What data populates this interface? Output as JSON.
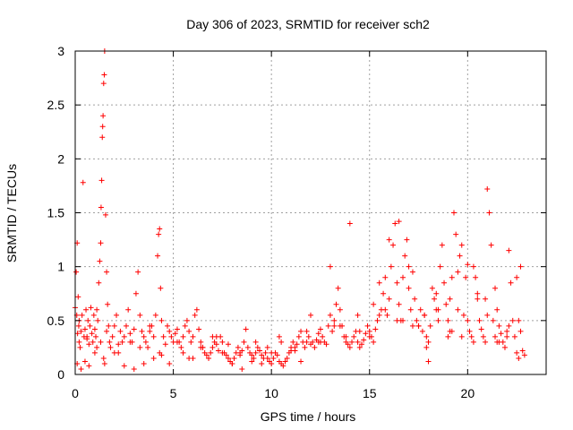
{
  "chart_data": {
    "type": "scatter",
    "title": "Day 306 of 2023, SRMTID for receiver sch2",
    "xlabel": "GPS time / hours",
    "ylabel": "SRMTID / TECUs",
    "xlim": [
      0,
      24
    ],
    "ylim": [
      0,
      3
    ],
    "xticks": [
      0,
      5,
      10,
      15,
      20
    ],
    "xtick_labels": [
      "0",
      "5",
      "10",
      "15",
      "20"
    ],
    "yticks": [
      0,
      0.5,
      1,
      1.5,
      2,
      2.5,
      3
    ],
    "ytick_labels": [
      "0",
      "0.5",
      "1",
      "1.5",
      "2",
      "2.5",
      "3"
    ],
    "grid": true,
    "marker": "+",
    "color": "#ff0000",
    "series": [
      {
        "name": "SRMTID",
        "x": [
          0.0,
          0.05,
          0.08,
          0.1,
          0.12,
          0.15,
          0.18,
          0.2,
          0.25,
          0.3,
          0.35,
          0.4,
          0.45,
          0.5,
          0.55,
          0.6,
          0.65,
          0.7,
          0.75,
          0.8,
          0.85,
          0.9,
          0.95,
          1.0,
          1.05,
          1.1,
          1.15,
          1.2,
          1.25,
          1.3,
          1.32,
          1.35,
          1.38,
          1.4,
          1.42,
          1.45,
          1.48,
          1.5,
          1.55,
          1.6,
          1.65,
          1.7,
          1.75,
          1.8,
          1.9,
          2.0,
          2.1,
          2.2,
          2.3,
          2.4,
          2.5,
          2.6,
          2.7,
          2.8,
          2.9,
          3.0,
          3.1,
          3.2,
          3.3,
          3.4,
          3.5,
          3.6,
          3.7,
          3.8,
          3.9,
          4.0,
          4.1,
          4.2,
          4.25,
          4.3,
          4.35,
          4.4,
          4.5,
          4.6,
          4.7,
          4.8,
          4.9,
          5.0,
          5.1,
          5.2,
          5.3,
          5.4,
          5.5,
          5.6,
          5.7,
          5.8,
          5.9,
          6.0,
          6.1,
          6.2,
          6.3,
          6.4,
          6.5,
          6.6,
          6.7,
          6.8,
          6.9,
          7.0,
          7.1,
          7.2,
          7.3,
          7.4,
          7.5,
          7.6,
          7.7,
          7.8,
          7.9,
          8.0,
          8.1,
          8.2,
          8.3,
          8.4,
          8.5,
          8.6,
          8.7,
          8.8,
          8.9,
          9.0,
          9.1,
          9.2,
          9.3,
          9.4,
          9.5,
          9.6,
          9.7,
          9.8,
          9.9,
          10.0,
          10.1,
          10.2,
          10.3,
          10.4,
          10.5,
          10.6,
          10.7,
          10.8,
          10.9,
          11.0,
          11.1,
          11.2,
          11.3,
          11.4,
          11.5,
          11.6,
          11.7,
          11.8,
          11.9,
          12.0,
          12.1,
          12.2,
          12.3,
          12.4,
          12.5,
          12.6,
          12.7,
          12.8,
          12.9,
          13.0,
          13.1,
          13.2,
          13.3,
          13.4,
          13.5,
          13.6,
          13.7,
          13.8,
          13.9,
          14.0,
          14.1,
          14.2,
          14.3,
          14.4,
          14.5,
          14.6,
          14.7,
          14.8,
          14.9,
          15.0,
          15.1,
          15.2,
          15.3,
          15.4,
          15.5,
          15.6,
          15.7,
          15.8,
          15.9,
          16.0,
          16.1,
          16.2,
          16.3,
          16.4,
          16.5,
          16.6,
          16.7,
          16.8,
          16.9,
          17.0,
          17.1,
          17.2,
          17.3,
          17.4,
          17.5,
          17.6,
          17.7,
          17.8,
          17.9,
          18.0,
          18.1,
          18.2,
          18.3,
          18.4,
          18.5,
          18.6,
          18.7,
          18.8,
          18.9,
          19.0,
          19.1,
          19.2,
          19.3,
          19.4,
          19.5,
          19.6,
          19.7,
          19.8,
          19.9,
          20.0,
          20.1,
          20.2,
          20.3,
          20.4,
          20.5,
          20.6,
          20.7,
          20.8,
          20.9,
          21.0,
          21.1,
          21.2,
          21.3,
          21.4,
          21.5,
          21.6,
          21.7,
          21.8,
          21.9,
          22.0,
          22.1,
          22.2,
          22.3,
          22.4,
          22.5,
          22.6,
          22.7,
          22.8,
          22.9,
          0.1,
          0.3,
          0.5,
          0.7,
          1.0,
          1.3,
          1.45,
          1.5,
          2.0,
          2.5,
          3.0,
          3.5,
          4.0,
          4.3,
          4.8,
          5.5,
          6.0,
          6.5,
          7.0,
          7.5,
          8.0,
          8.5,
          9.0,
          9.5,
          10.0,
          10.5,
          11.0,
          11.5,
          12.0,
          12.5,
          13.0,
          13.5,
          14.0,
          14.5,
          15.0,
          15.5,
          16.0,
          16.5,
          16.7,
          17.0,
          17.5,
          17.9,
          18.0,
          18.5,
          19.0,
          19.2,
          19.5,
          20.0,
          20.5,
          21.0,
          21.5,
          21.6,
          22.0,
          22.5,
          22.7,
          0.2,
          0.6,
          1.1,
          1.6,
          2.2,
          2.8,
          3.3,
          3.8,
          4.4,
          5.2,
          5.8,
          6.4,
          7.2,
          7.8,
          8.4,
          9.2,
          9.8,
          10.4,
          11.2,
          11.8,
          12.4,
          13.2,
          13.8,
          14.4,
          15.2,
          15.8,
          16.4,
          17.2,
          17.8,
          18.4,
          19.1,
          19.7,
          20.3,
          20.9,
          21.4,
          22.1,
          22.6
        ],
        "y": [
          0.62,
          0.95,
          0.55,
          1.22,
          0.38,
          0.72,
          0.45,
          0.3,
          0.25,
          0.4,
          0.55,
          1.78,
          0.35,
          0.42,
          0.6,
          0.33,
          0.5,
          0.28,
          0.45,
          0.62,
          0.38,
          0.3,
          0.55,
          0.42,
          0.35,
          0.6,
          0.5,
          0.85,
          1.05,
          1.22,
          1.55,
          1.8,
          2.2,
          2.3,
          2.4,
          2.7,
          2.78,
          3.0,
          1.48,
          0.95,
          0.65,
          0.45,
          0.3,
          0.25,
          0.35,
          0.45,
          0.55,
          0.28,
          0.4,
          0.3,
          0.35,
          0.45,
          0.6,
          0.38,
          0.3,
          0.42,
          0.75,
          0.95,
          0.55,
          0.4,
          0.35,
          0.3,
          0.25,
          0.4,
          0.45,
          0.35,
          0.55,
          1.1,
          1.3,
          1.35,
          0.8,
          0.5,
          0.35,
          0.28,
          0.45,
          0.4,
          0.35,
          0.3,
          0.38,
          0.42,
          0.3,
          0.25,
          0.35,
          0.45,
          0.5,
          0.4,
          0.3,
          0.35,
          0.55,
          0.6,
          0.42,
          0.3,
          0.25,
          0.2,
          0.18,
          0.15,
          0.2,
          0.25,
          0.3,
          0.28,
          0.22,
          0.35,
          0.3,
          0.2,
          0.18,
          0.15,
          0.12,
          0.1,
          0.15,
          0.2,
          0.25,
          0.18,
          0.22,
          0.3,
          0.42,
          0.25,
          0.2,
          0.18,
          0.15,
          0.2,
          0.25,
          0.22,
          0.18,
          0.15,
          0.2,
          0.25,
          0.12,
          0.1,
          0.15,
          0.2,
          0.18,
          0.12,
          0.1,
          0.08,
          0.12,
          0.15,
          0.2,
          0.25,
          0.3,
          0.22,
          0.28,
          0.35,
          0.4,
          0.3,
          0.25,
          0.3,
          0.35,
          0.28,
          0.3,
          0.25,
          0.32,
          0.38,
          0.42,
          0.35,
          0.3,
          0.28,
          0.45,
          0.55,
          0.4,
          0.5,
          0.65,
          0.8,
          0.6,
          0.45,
          0.35,
          0.3,
          0.28,
          0.25,
          0.3,
          0.35,
          0.4,
          0.3,
          0.25,
          0.28,
          0.32,
          0.38,
          0.45,
          0.4,
          0.35,
          0.3,
          0.42,
          0.5,
          0.55,
          0.6,
          0.75,
          0.9,
          0.55,
          0.7,
          1.0,
          1.2,
          1.4,
          0.85,
          0.65,
          0.5,
          0.9,
          1.1,
          1.25,
          0.8,
          0.6,
          0.95,
          0.7,
          0.5,
          0.45,
          0.6,
          0.4,
          0.55,
          0.35,
          0.3,
          0.45,
          0.8,
          0.7,
          0.6,
          0.5,
          1.0,
          1.2,
          0.85,
          0.65,
          0.5,
          0.7,
          0.9,
          1.5,
          1.3,
          0.6,
          1.1,
          1.2,
          0.55,
          0.9,
          0.5,
          0.4,
          0.35,
          1.0,
          0.9,
          0.7,
          0.5,
          0.42,
          0.35,
          0.3,
          1.72,
          1.5,
          1.2,
          0.5,
          0.35,
          0.3,
          0.45,
          0.38,
          0.3,
          0.25,
          0.4,
          1.15,
          0.85,
          0.5,
          0.35,
          0.2,
          0.15,
          1.0,
          0.22,
          0.18,
          0.1,
          0.05,
          0.12,
          0.08,
          0.2,
          0.3,
          0.15,
          0.1,
          0.2,
          0.08,
          0.05,
          0.1,
          0.15,
          0.2,
          0.1,
          0.2,
          0.15,
          0.25,
          0.35,
          0.2,
          0.1,
          0.05,
          0.12,
          0.1,
          0.2,
          0.3,
          0.22,
          0.12,
          0.55,
          0.3,
          1.0,
          0.45,
          1.4,
          0.4,
          0.35,
          0.85,
          1.25,
          1.42,
          0.5,
          1.0,
          0.45,
          0.25,
          0.12,
          0.6,
          0.35,
          0.4,
          0.95,
          1.02,
          0.75,
          0.55,
          0.6,
          0.3,
          0.35,
          0.9,
          0.4,
          0.5,
          0.35,
          0.25,
          0.4,
          0.2,
          0.3,
          0.25,
          0.45,
          0.18,
          0.3,
          0.15,
          0.25,
          0.35,
          0.28,
          0.2,
          0.3,
          0.15,
          0.35,
          0.25,
          0.4,
          0.3,
          0.45,
          0.35,
          0.55,
          0.65,
          0.6,
          0.5,
          0.45,
          0.55,
          0.75,
          0.4,
          0.35,
          0.3,
          0.7,
          0.8,
          0.45,
          0.5
        ]
      }
    ]
  }
}
